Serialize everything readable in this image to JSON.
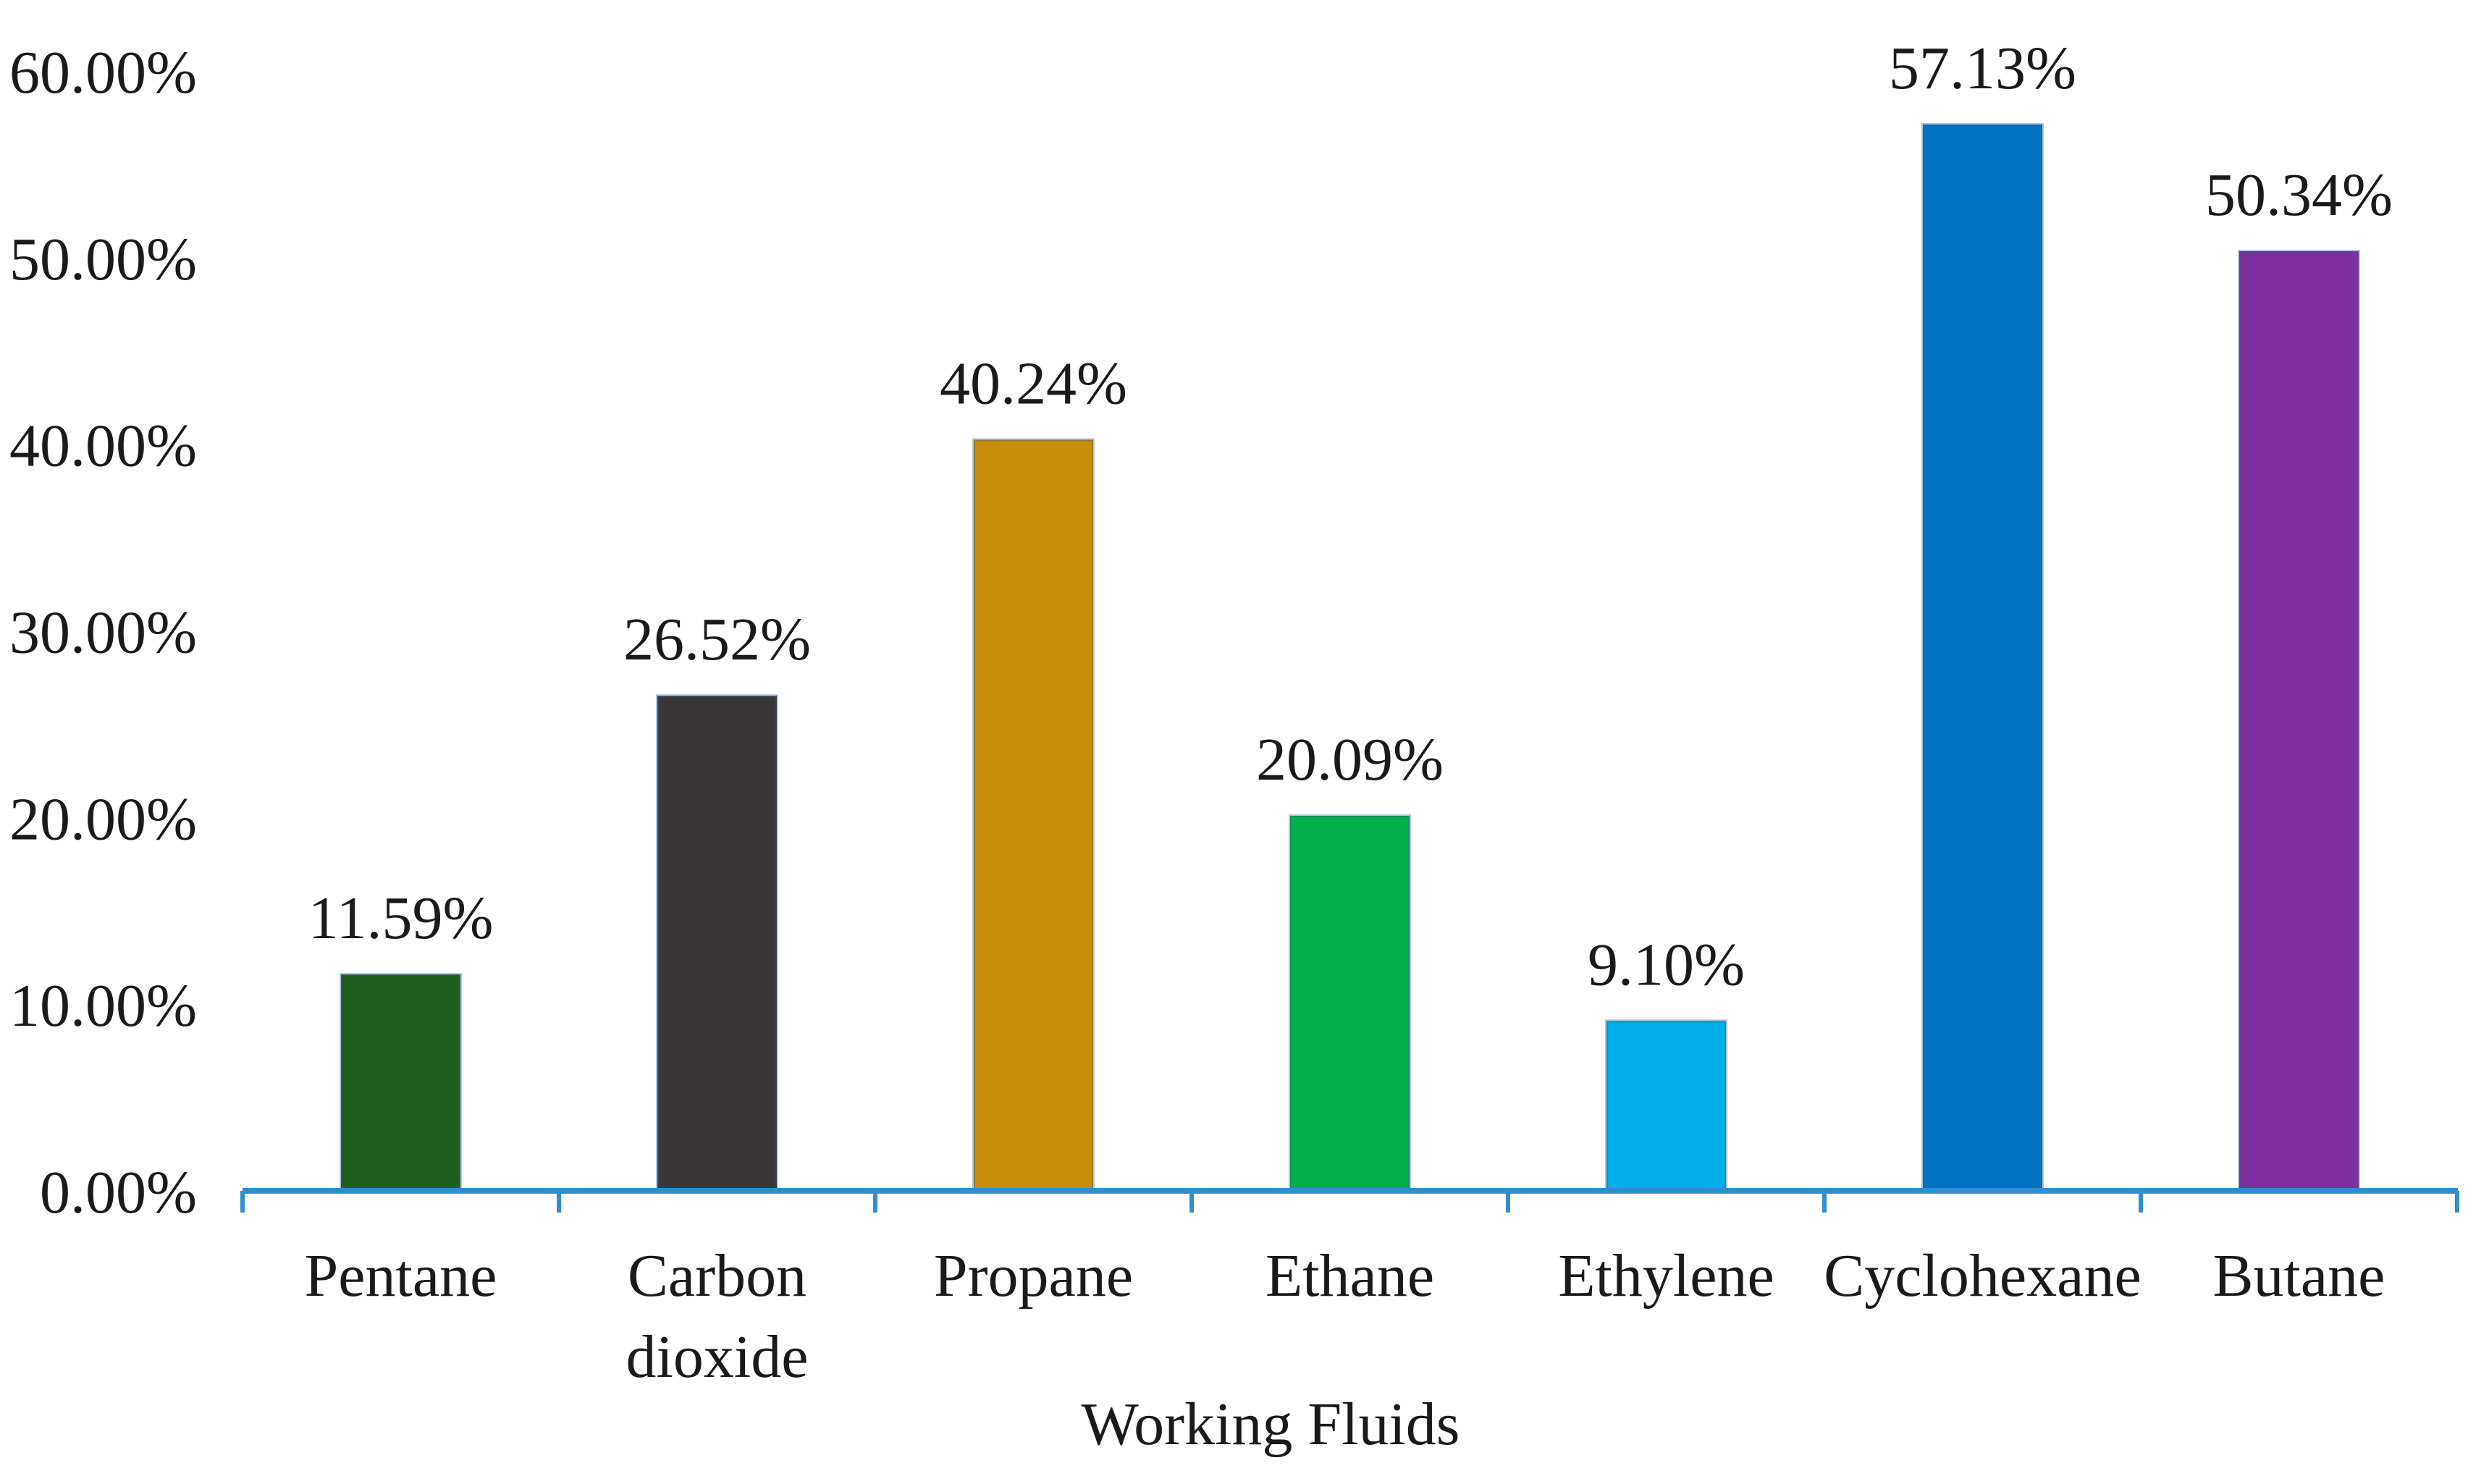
{
  "chart_data": {
    "type": "bar",
    "title": "",
    "xlabel": "Working Fluids",
    "ylabel": "",
    "ylim": [
      0,
      60
    ],
    "y_ticks": [
      {
        "value": 0,
        "label": "0.00%"
      },
      {
        "value": 10,
        "label": "10.00%"
      },
      {
        "value": 20,
        "label": "20.00%"
      },
      {
        "value": 30,
        "label": "30.00%"
      },
      {
        "value": 40,
        "label": "40.00%"
      },
      {
        "value": 50,
        "label": "50.00%"
      },
      {
        "value": 60,
        "label": "60.00%"
      }
    ],
    "grid": false,
    "legend": "none",
    "axis_color": "#2e8fd0",
    "bars": [
      {
        "category": [
          "Pentane"
        ],
        "value": 11.59,
        "label": "11.59%",
        "color": "#1f5e1f"
      },
      {
        "category": [
          "Carbon",
          "dioxide"
        ],
        "value": 26.52,
        "label": "26.52%",
        "color": "#3a3638"
      },
      {
        "category": [
          "Propane"
        ],
        "value": 40.24,
        "label": "40.24%",
        "color": "#c98c08"
      },
      {
        "category": [
          "Ethane"
        ],
        "value": 20.09,
        "label": "20.09%",
        "color": "#04b04b"
      },
      {
        "category": [
          "Ethylene"
        ],
        "value": 9.1,
        "label": "9.10%",
        "color": "#00aeea"
      },
      {
        "category": [
          "Cyclohexane"
        ],
        "value": 57.13,
        "label": "57.13%",
        "color": "#0272c4"
      },
      {
        "category": [
          "Butane"
        ],
        "value": 50.34,
        "label": "50.34%",
        "color": "#7f2ea0"
      }
    ]
  }
}
